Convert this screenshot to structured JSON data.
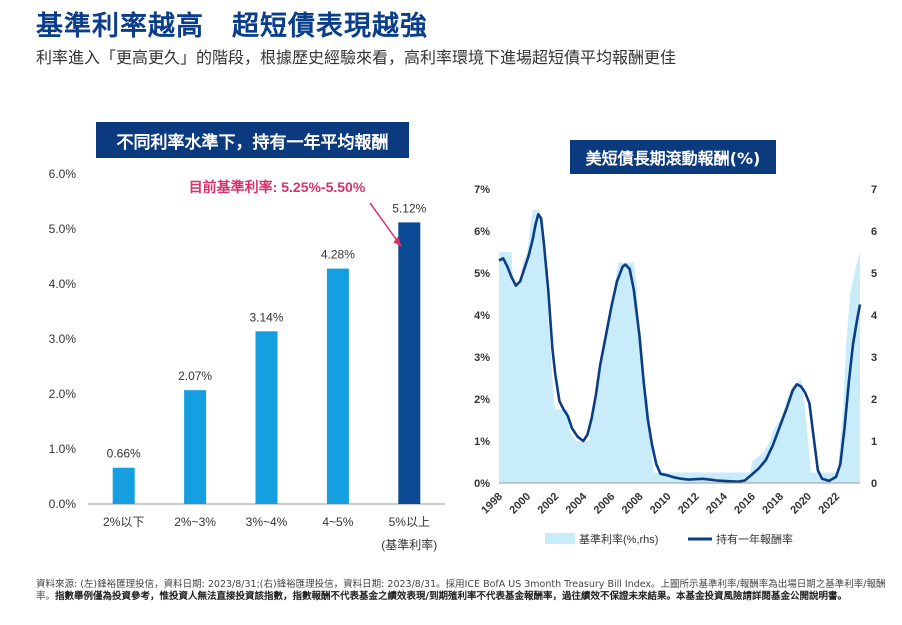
{
  "header": {
    "title": "基準利率越高　超短債表現越強",
    "subtitle": "利率進入「更高更久」的階段，根據歷史經驗來看，高利率環境下進場超短債平均報酬更佳"
  },
  "left_panel": {
    "title": "不同利率水準下，持有一年平均報酬",
    "annotation": "目前基準利率: 5.25%-5.50%"
  },
  "right_panel": {
    "title": "美短債長期滾動報酬(%)"
  },
  "colors": {
    "bar_light": "#159ee0",
    "bar_dark": "#0a4a94",
    "title_box": "#0c3a7e",
    "area_fill": "#c9ecfa",
    "line": "#0b3d84",
    "annotation": "#d6336c"
  },
  "chart_data": [
    {
      "type": "bar",
      "categories": [
        "2%以下",
        "2%~3%",
        "3%~4%",
        "4~5%",
        "5%以上"
      ],
      "category_sublabels": [
        "",
        "",
        "",
        "",
        "(基準利率)"
      ],
      "values": [
        0.66,
        2.07,
        3.14,
        4.28,
        5.12
      ],
      "data_labels": [
        "0.66%",
        "2.07%",
        "3.14%",
        "4.28%",
        "5.12%"
      ],
      "yticks": [
        "0.0%",
        "1.0%",
        "2.0%",
        "3.0%",
        "4.0%",
        "5.0%",
        "6.0%"
      ],
      "ylim": [
        0,
        6
      ],
      "highlight_index": 4
    },
    {
      "type": "area",
      "x_range": [
        1998,
        2023.7
      ],
      "xticks": [
        "1998",
        "2000",
        "2002",
        "2004",
        "2006",
        "2008",
        "2010",
        "2012",
        "2014",
        "2016",
        "2018",
        "2020",
        "2022"
      ],
      "yticks_left": [
        "0%",
        "1%",
        "2%",
        "3%",
        "4%",
        "5%",
        "6%",
        "7%"
      ],
      "yticks_right": [
        "0",
        "1",
        "2",
        "3",
        "4",
        "5",
        "6",
        "7"
      ],
      "ylim": [
        0,
        7
      ],
      "series": [
        {
          "name": "基準利率(%,rhs)",
          "type": "area",
          "points": [
            [
              1998,
              5.5
            ],
            [
              1998.9,
              5.5
            ],
            [
              1999,
              4.75
            ],
            [
              1999.5,
              4.75
            ],
            [
              1999.7,
              5.25
            ],
            [
              2000,
              5.5
            ],
            [
              2000.4,
              6.5
            ],
            [
              2000.9,
              6.5
            ],
            [
              2001,
              6.0
            ],
            [
              2001.3,
              5.0
            ],
            [
              2001.6,
              3.5
            ],
            [
              2001.9,
              2.0
            ],
            [
              2002,
              1.75
            ],
            [
              2002.9,
              1.75
            ],
            [
              2003,
              1.25
            ],
            [
              2003.5,
              1.0
            ],
            [
              2004.4,
              1.0
            ],
            [
              2004.6,
              1.5
            ],
            [
              2005,
              2.25
            ],
            [
              2005.5,
              3.25
            ],
            [
              2006,
              4.25
            ],
            [
              2006.5,
              5.25
            ],
            [
              2007.6,
              5.25
            ],
            [
              2007.8,
              4.75
            ],
            [
              2008,
              3.5
            ],
            [
              2008.3,
              2.25
            ],
            [
              2008.6,
              2.0
            ],
            [
              2008.8,
              1.0
            ],
            [
              2009,
              0.25
            ],
            [
              2015.9,
              0.25
            ],
            [
              2016,
              0.5
            ],
            [
              2016.9,
              0.75
            ],
            [
              2017.3,
              1.0
            ],
            [
              2017.5,
              1.25
            ],
            [
              2018,
              1.5
            ],
            [
              2018.3,
              1.75
            ],
            [
              2018.5,
              2.0
            ],
            [
              2018.8,
              2.25
            ],
            [
              2019.5,
              2.5
            ],
            [
              2019.6,
              2.25
            ],
            [
              2019.8,
              1.75
            ],
            [
              2020.2,
              0.25
            ],
            [
              2022.1,
              0.25
            ],
            [
              2022.3,
              1.0
            ],
            [
              2022.5,
              1.75
            ],
            [
              2022.7,
              3.25
            ],
            [
              2023,
              4.5
            ],
            [
              2023.3,
              5.0
            ],
            [
              2023.5,
              5.25
            ],
            [
              2023.7,
              5.5
            ]
          ]
        },
        {
          "name": "持有一年報酬率",
          "type": "line",
          "points": [
            [
              1998,
              5.3
            ],
            [
              1998.3,
              5.35
            ],
            [
              1998.6,
              5.15
            ],
            [
              1998.9,
              4.9
            ],
            [
              1999.2,
              4.7
            ],
            [
              1999.5,
              4.8
            ],
            [
              1999.8,
              5.1
            ],
            [
              2000.1,
              5.4
            ],
            [
              2000.4,
              5.8
            ],
            [
              2000.6,
              6.15
            ],
            [
              2000.8,
              6.4
            ],
            [
              2001,
              6.3
            ],
            [
              2001.2,
              5.7
            ],
            [
              2001.5,
              4.6
            ],
            [
              2001.8,
              3.2
            ],
            [
              2002,
              2.6
            ],
            [
              2002.3,
              1.95
            ],
            [
              2002.6,
              1.75
            ],
            [
              2002.9,
              1.6
            ],
            [
              2003.2,
              1.3
            ],
            [
              2003.6,
              1.1
            ],
            [
              2004,
              1.0
            ],
            [
              2004.3,
              1.15
            ],
            [
              2004.6,
              1.55
            ],
            [
              2004.9,
              2.1
            ],
            [
              2005.2,
              2.8
            ],
            [
              2005.6,
              3.5
            ],
            [
              2006,
              4.2
            ],
            [
              2006.4,
              4.8
            ],
            [
              2006.8,
              5.15
            ],
            [
              2007,
              5.2
            ],
            [
              2007.3,
              5.1
            ],
            [
              2007.6,
              4.6
            ],
            [
              2008,
              3.5
            ],
            [
              2008.3,
              2.4
            ],
            [
              2008.6,
              1.5
            ],
            [
              2008.9,
              0.9
            ],
            [
              2009.2,
              0.45
            ],
            [
              2009.5,
              0.22
            ],
            [
              2010,
              0.18
            ],
            [
              2010.5,
              0.13
            ],
            [
              2011,
              0.1
            ],
            [
              2011.5,
              0.08
            ],
            [
              2012,
              0.09
            ],
            [
              2012.5,
              0.1
            ],
            [
              2013,
              0.08
            ],
            [
              2013.5,
              0.06
            ],
            [
              2014,
              0.05
            ],
            [
              2014.5,
              0.04
            ],
            [
              2015,
              0.03
            ],
            [
              2015.5,
              0.06
            ],
            [
              2016,
              0.2
            ],
            [
              2016.5,
              0.35
            ],
            [
              2017,
              0.55
            ],
            [
              2017.5,
              0.9
            ],
            [
              2018,
              1.35
            ],
            [
              2018.5,
              1.8
            ],
            [
              2018.9,
              2.2
            ],
            [
              2019.2,
              2.35
            ],
            [
              2019.5,
              2.3
            ],
            [
              2019.8,
              2.15
            ],
            [
              2020.1,
              1.9
            ],
            [
              2020.4,
              1.1
            ],
            [
              2020.7,
              0.3
            ],
            [
              2021,
              0.1
            ],
            [
              2021.5,
              0.05
            ],
            [
              2022,
              0.15
            ],
            [
              2022.3,
              0.45
            ],
            [
              2022.6,
              1.3
            ],
            [
              2022.9,
              2.4
            ],
            [
              2023.2,
              3.3
            ],
            [
              2023.5,
              3.9
            ],
            [
              2023.7,
              4.25
            ]
          ]
        }
      ]
    }
  ],
  "footnote": {
    "source": "資料來源: (左)鋒裕匯理投信，資料日期: 2023/8/31;(右)鋒裕匯理投信，資料日期: 2023/8/31。採用ICE BofA US 3month Treasury Bill Index。上圖所示基準利率/報酬率為出場日期之基準利率/報酬率。",
    "disclaimer": "指數舉例僅為投資參考，惟投資人無法直接投資該指數，指數報酬不代表基金之績效表現/到期殖利率不代表基金報酬率，過往績效不保證未來結果。本基金投資風險請詳閱基金公開說明書。"
  }
}
